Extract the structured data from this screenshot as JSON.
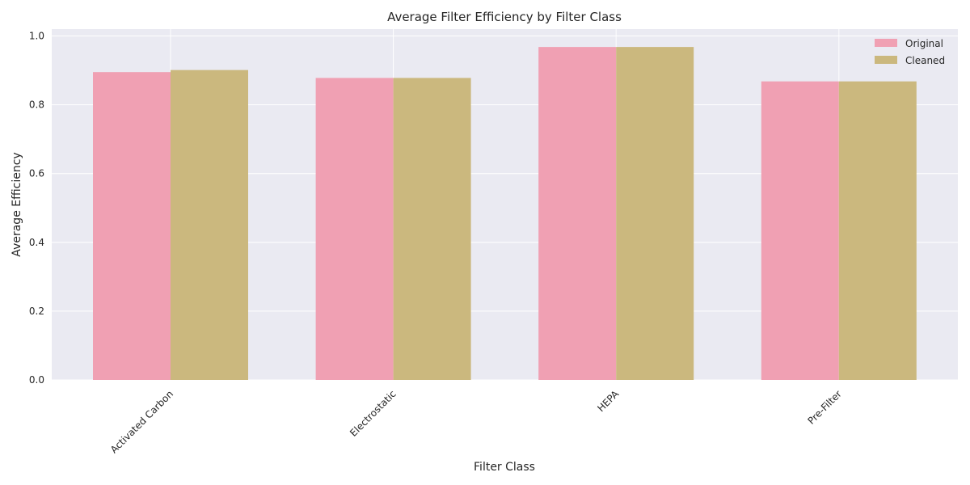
{
  "chart_data": {
    "type": "bar",
    "title": "Average Filter Efficiency by Filter Class",
    "xlabel": "Filter Class",
    "ylabel": "Average Efficiency",
    "categories": [
      "Activated Carbon",
      "Electrostatic",
      "HEPA",
      "Pre-Filter"
    ],
    "series": [
      {
        "name": "Original",
        "values": [
          0.895,
          0.878,
          0.968,
          0.868
        ],
        "color": "#f0a0b3"
      },
      {
        "name": "Cleaned",
        "values": [
          0.901,
          0.878,
          0.968,
          0.868
        ],
        "color": "#cbb87e"
      }
    ],
    "ylim": [
      0,
      1.02
    ],
    "yticks": [
      "0.0",
      "0.2",
      "0.4",
      "0.6",
      "0.8",
      "1.0"
    ],
    "grid": true,
    "legend": "top-right"
  }
}
